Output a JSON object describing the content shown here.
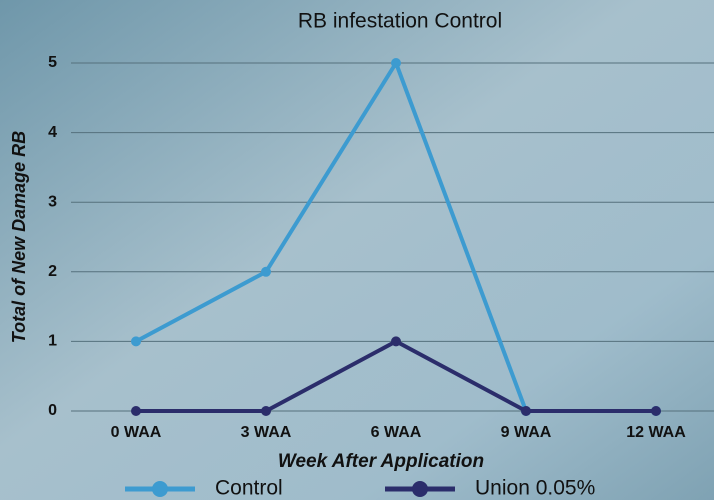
{
  "chart_data": {
    "type": "line",
    "title": "RB infestation Control",
    "x_label": "Week After Application",
    "y_label": "Total of New Damage RB",
    "categories": [
      "0 WAA",
      "3 WAA",
      "6 WAA",
      "9 WAA",
      "12 WAA"
    ],
    "series": [
      {
        "name": "Control",
        "color": "#3d9bd0",
        "values": [
          1,
          2,
          5,
          0,
          0
        ]
      },
      {
        "name": "Union 0.05%",
        "color": "#2b2d6b",
        "values": [
          0,
          0,
          1,
          0,
          0
        ]
      }
    ],
    "ylim": [
      0,
      5
    ],
    "yticks": [
      0,
      1,
      2,
      3,
      4,
      5
    ],
    "grid": true,
    "legend": "bottom"
  }
}
